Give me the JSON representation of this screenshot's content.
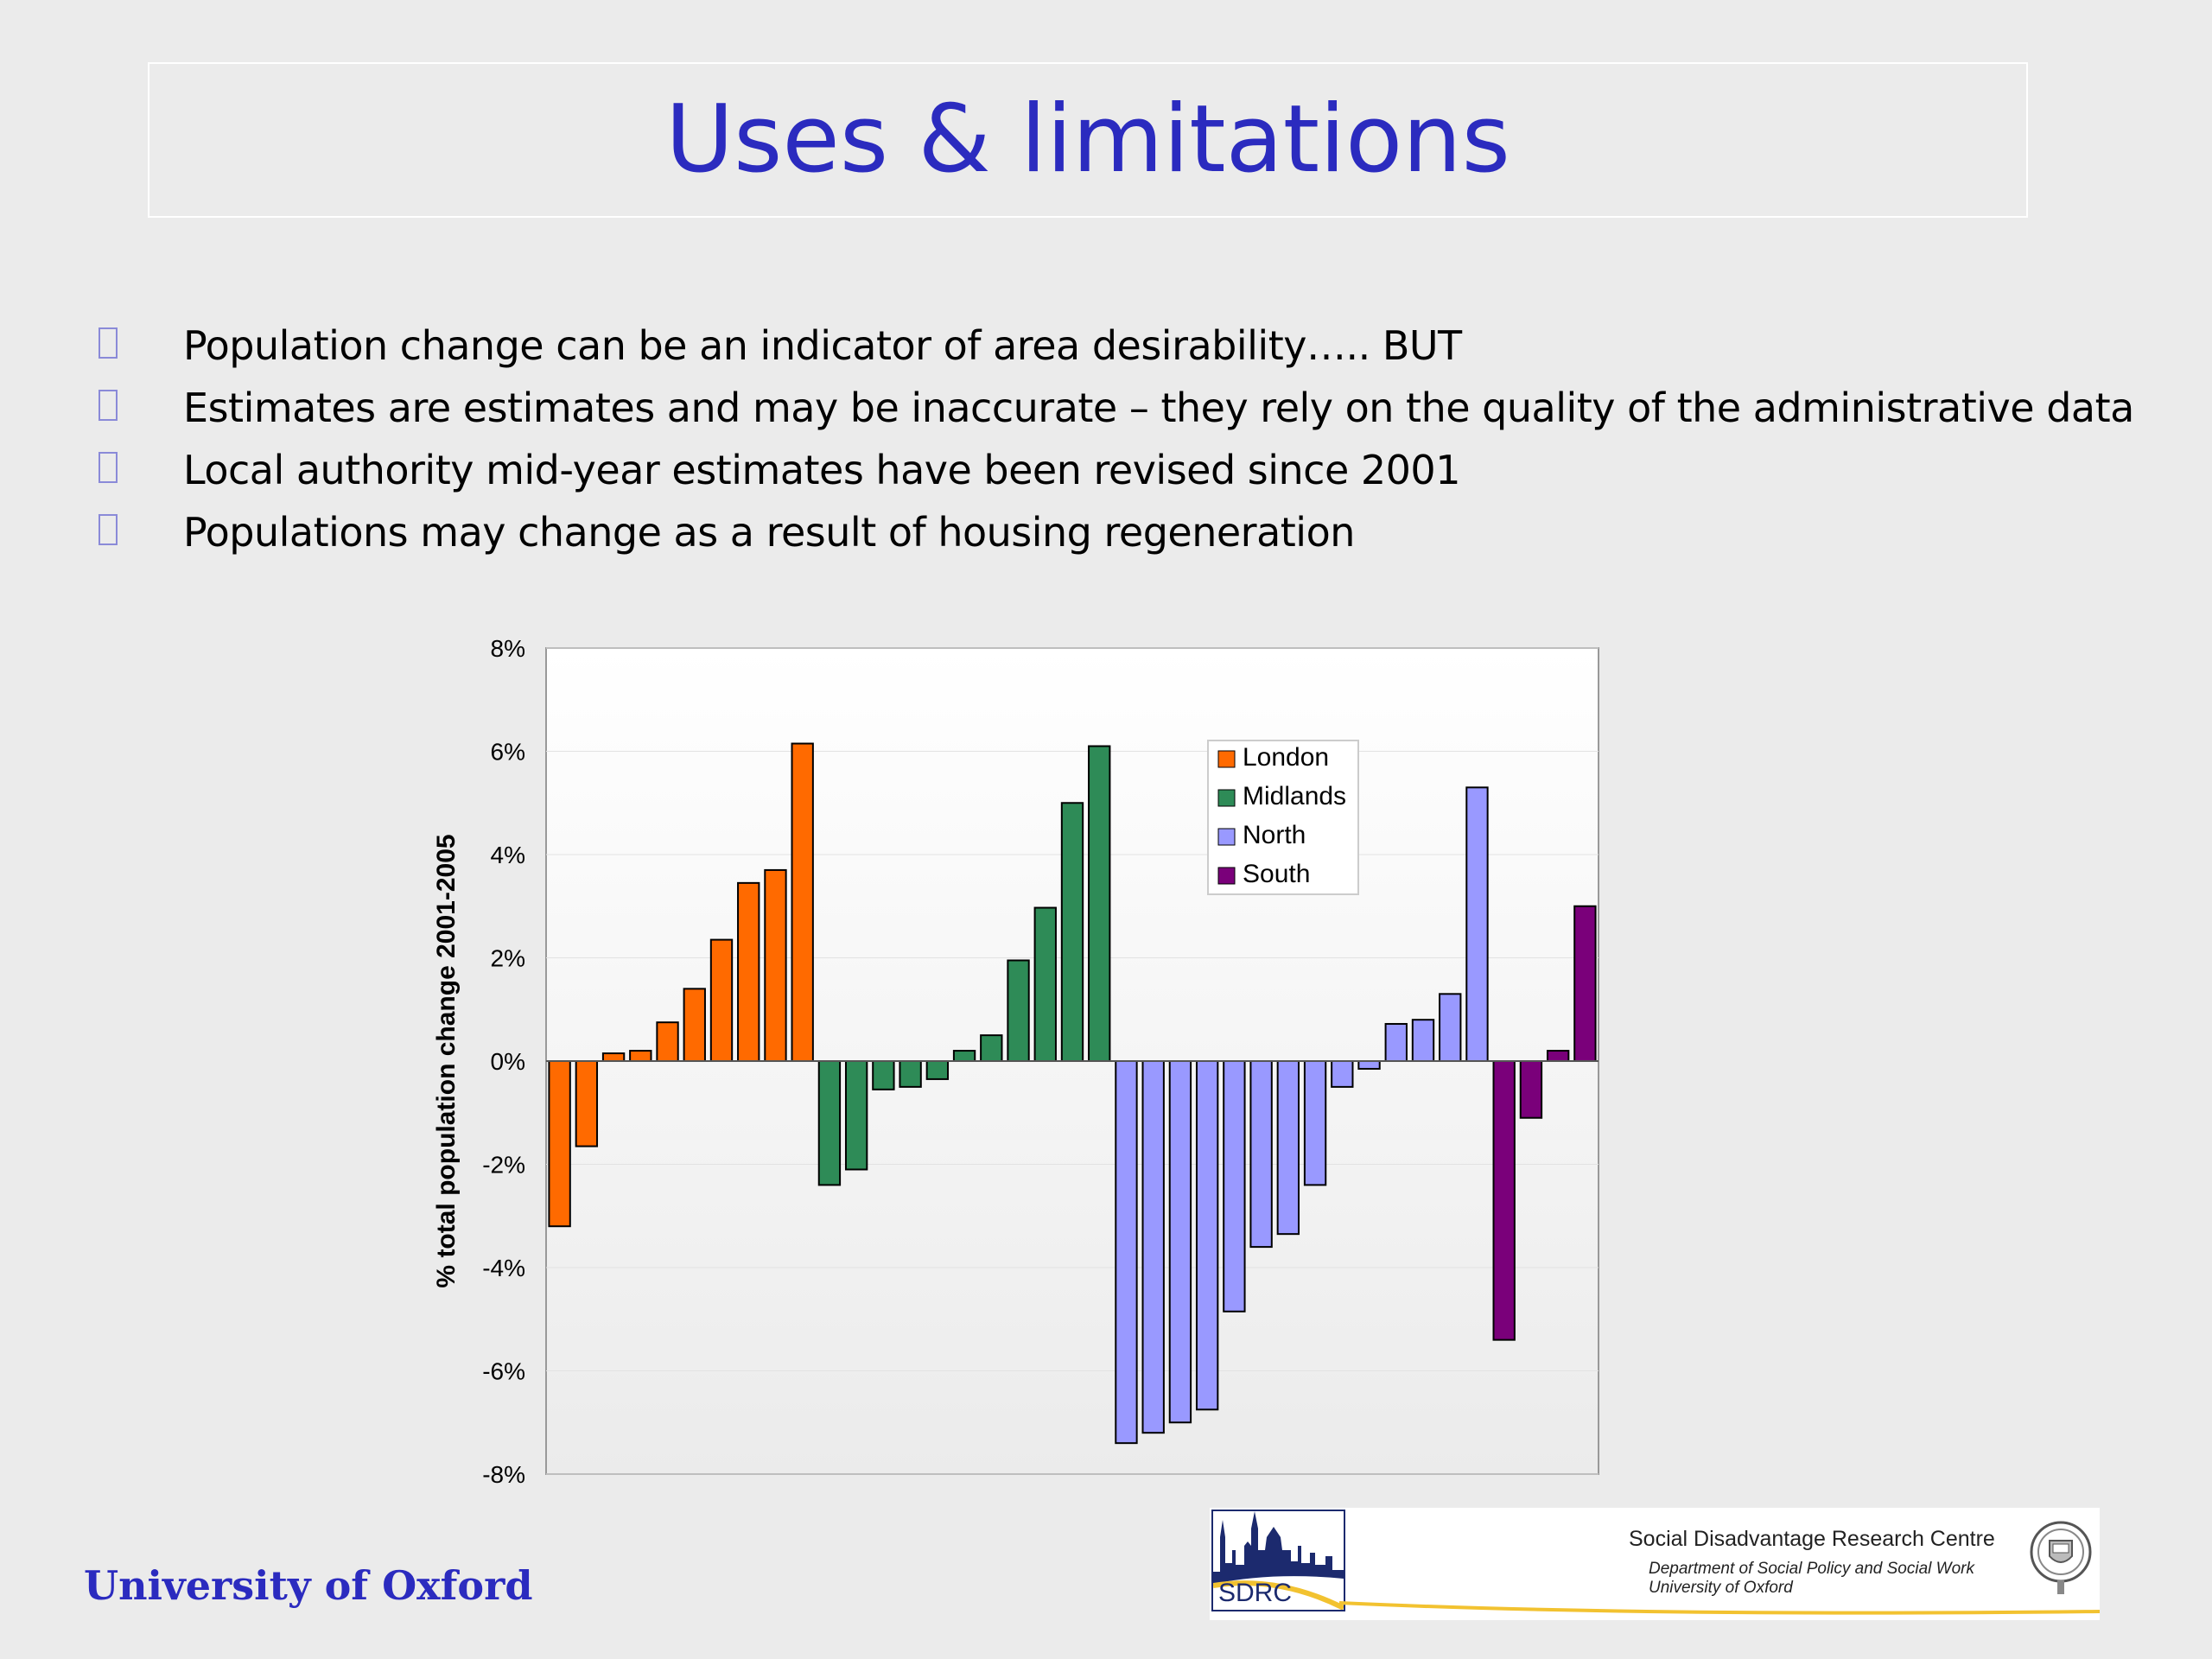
{
  "slide": {
    "title": "Uses & limitations",
    "bullets": [
      "Population change can be an indicator of area desirability….. BUT",
      "Estimates are estimates and may be inaccurate – they rely on the quality of the administrative data",
      "Local authority mid-year estimates have been revised since 2001",
      "Populations may change as a result of housing regeneration"
    ]
  },
  "footer": {
    "university": "University of Oxford",
    "logo_text": "SDRC",
    "centre_name": "Social Disadvantage Research Centre",
    "department": "Department of Social Policy and Social Work",
    "university_line": "University of Oxford"
  },
  "chart_data": {
    "type": "bar",
    "ylabel": "% total population change 2001-2005",
    "ylim": [
      -8,
      8
    ],
    "yticks": [
      "8%",
      "6%",
      "4%",
      "2%",
      "0%",
      "-2%",
      "-4%",
      "-6%",
      "-8%"
    ],
    "legend_position": "top-right",
    "series": [
      {
        "name": "London",
        "color": "#ff6a00",
        "values": [
          -3.2,
          -1.65,
          0.15,
          0.2,
          0.75,
          1.4,
          2.35,
          3.45,
          3.7,
          6.15
        ]
      },
      {
        "name": "Midlands",
        "color": "#2e8b57",
        "values": [
          -2.4,
          -2.1,
          -0.55,
          -0.5,
          -0.35,
          0.2,
          0.5,
          1.95,
          2.97,
          5.0,
          6.1
        ]
      },
      {
        "name": "North",
        "color": "#9999ff",
        "values": [
          -7.4,
          -7.2,
          -7.0,
          -6.75,
          -4.85,
          -3.6,
          -3.35,
          -2.4,
          -0.5,
          -0.15,
          0.72,
          0.8,
          1.3,
          5.3
        ]
      },
      {
        "name": "South",
        "color": "#7a007a",
        "values": [
          -5.4,
          -1.1,
          0.2,
          3.0
        ]
      }
    ]
  }
}
